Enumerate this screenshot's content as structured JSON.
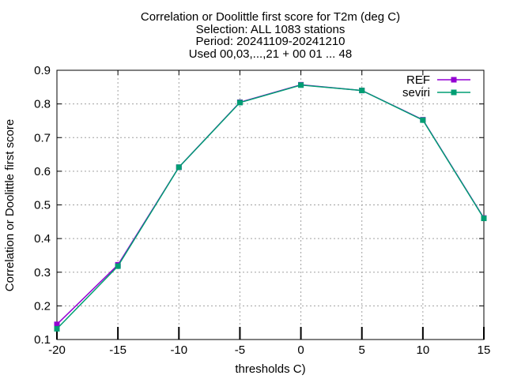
{
  "chart_data": {
    "type": "line",
    "title_lines": [
      "Correlation or Doolittle first score  for T2m (deg C)",
      "Selection: ALL    1083 stations",
      "Period: 20241109-20241210",
      "Used 00,03,...,21 + 00 01 ... 48"
    ],
    "xlabel": "thresholds C)",
    "ylabel": "Correlation or Doolittle first score",
    "xlim": [
      -20,
      15
    ],
    "ylim": [
      0.1,
      0.9
    ],
    "x_ticks": [
      -20,
      -15,
      -10,
      -5,
      0,
      5,
      10,
      15
    ],
    "x_tick_labels": [
      "-20",
      "-15",
      "-10",
      "-5",
      "0",
      "5",
      "10",
      "15"
    ],
    "y_ticks": [
      0.1,
      0.2,
      0.3,
      0.4,
      0.5,
      0.6,
      0.7,
      0.8,
      0.9
    ],
    "y_tick_labels": [
      "0.1",
      "0.2",
      "0.3",
      "0.4",
      "0.5",
      "0.6",
      "0.7",
      "0.8",
      "0.9"
    ],
    "grid": true,
    "legend_position": "top-right",
    "x": [
      -20,
      -15,
      -10,
      -5,
      0,
      5,
      10,
      15
    ],
    "series": [
      {
        "name": "REF",
        "color": "#9400d3",
        "values": [
          0.145,
          0.322,
          0.612,
          0.805,
          0.857,
          0.84,
          0.753,
          0.461
        ]
      },
      {
        "name": "seviri",
        "color": "#009e73",
        "values": [
          0.132,
          0.318,
          0.612,
          0.804,
          0.856,
          0.84,
          0.752,
          0.46
        ]
      }
    ]
  }
}
